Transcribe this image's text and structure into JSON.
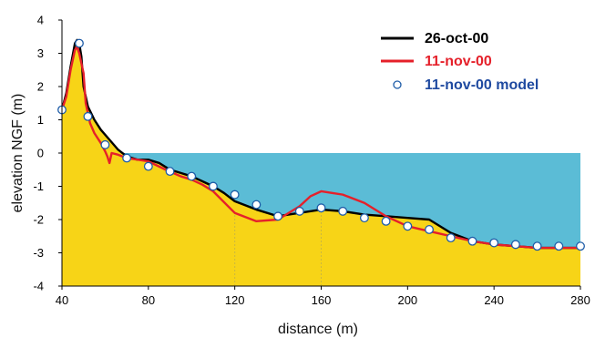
{
  "chart_data": {
    "type": "line",
    "title": "",
    "xlabel": "distance (m)",
    "ylabel": "elevation NGF (m)",
    "xlim": [
      40,
      280
    ],
    "ylim": [
      -4,
      4
    ],
    "x_ticks": [
      40,
      80,
      120,
      160,
      200,
      240,
      280
    ],
    "y_ticks": [
      4,
      3,
      2,
      1,
      0,
      -1,
      -2,
      -3,
      -4
    ],
    "water_level": 0,
    "water_range_x": [
      68,
      280
    ],
    "grid": false,
    "legend_position": "top-right",
    "colors": {
      "sand_fill": "#f7d417",
      "water_fill": "#5bbcd6",
      "oct_line": "#000000",
      "nov_line": "#e5202a",
      "model_marker_fill": "#ffffff",
      "model_marker_stroke": "#1f5da8",
      "legend_model_text": "#1f4aa0"
    },
    "series": [
      {
        "name": "26-oct-00",
        "style": "line",
        "x": [
          40,
          42,
          44,
          46,
          47,
          48,
          49,
          50,
          52,
          55,
          58,
          62,
          66,
          70,
          75,
          80,
          85,
          90,
          95,
          100,
          105,
          110,
          115,
          120,
          130,
          140,
          150,
          160,
          170,
          180,
          190,
          200,
          210,
          220,
          230,
          240,
          250,
          260,
          270,
          280
        ],
        "y": [
          1.3,
          1.8,
          2.6,
          3.3,
          3.4,
          3.3,
          2.9,
          2.0,
          1.4,
          1.0,
          0.7,
          0.4,
          0.1,
          -0.1,
          -0.2,
          -0.2,
          -0.3,
          -0.5,
          -0.6,
          -0.7,
          -0.85,
          -1.0,
          -1.2,
          -1.45,
          -1.7,
          -1.9,
          -1.8,
          -1.7,
          -1.75,
          -1.85,
          -1.9,
          -1.95,
          -2.0,
          -2.4,
          -2.65,
          -2.75,
          -2.8,
          -2.85,
          -2.85,
          -2.85
        ]
      },
      {
        "name": "11-nov-00",
        "style": "line",
        "x": [
          40,
          42,
          44,
          46,
          47,
          48,
          50,
          51,
          53,
          55,
          58,
          60,
          61,
          62,
          63,
          66,
          70,
          80,
          88,
          95,
          100,
          105,
          110,
          120,
          130,
          140,
          150,
          155,
          160,
          165,
          170,
          180,
          190,
          200,
          210,
          220,
          230,
          240,
          250,
          260,
          270,
          280
        ],
        "y": [
          1.3,
          1.7,
          2.5,
          3.1,
          3.2,
          3.0,
          2.4,
          1.5,
          0.9,
          0.6,
          0.3,
          0.05,
          -0.1,
          -0.3,
          0.0,
          -0.05,
          -0.15,
          -0.25,
          -0.5,
          -0.7,
          -0.8,
          -0.95,
          -1.15,
          -1.8,
          -2.05,
          -2.0,
          -1.6,
          -1.3,
          -1.15,
          -1.2,
          -1.25,
          -1.5,
          -1.9,
          -2.2,
          -2.35,
          -2.5,
          -2.65,
          -2.75,
          -2.8,
          -2.85,
          -2.85,
          -2.85
        ]
      },
      {
        "name": "11-nov-00  model",
        "style": "markers",
        "x": [
          40,
          48,
          52,
          60,
          70,
          80,
          90,
          100,
          110,
          120,
          130,
          140,
          150,
          160,
          170,
          180,
          190,
          200,
          210,
          220,
          230,
          240,
          250,
          260,
          270,
          280
        ],
        "y": [
          1.3,
          3.3,
          1.1,
          0.25,
          -0.15,
          -0.4,
          -0.55,
          -0.7,
          -1.0,
          -1.25,
          -1.55,
          -1.9,
          -1.75,
          -1.65,
          -1.75,
          -1.95,
          -2.05,
          -2.2,
          -2.3,
          -2.55,
          -2.65,
          -2.7,
          -2.75,
          -2.8,
          -2.8,
          -2.8
        ]
      }
    ]
  }
}
